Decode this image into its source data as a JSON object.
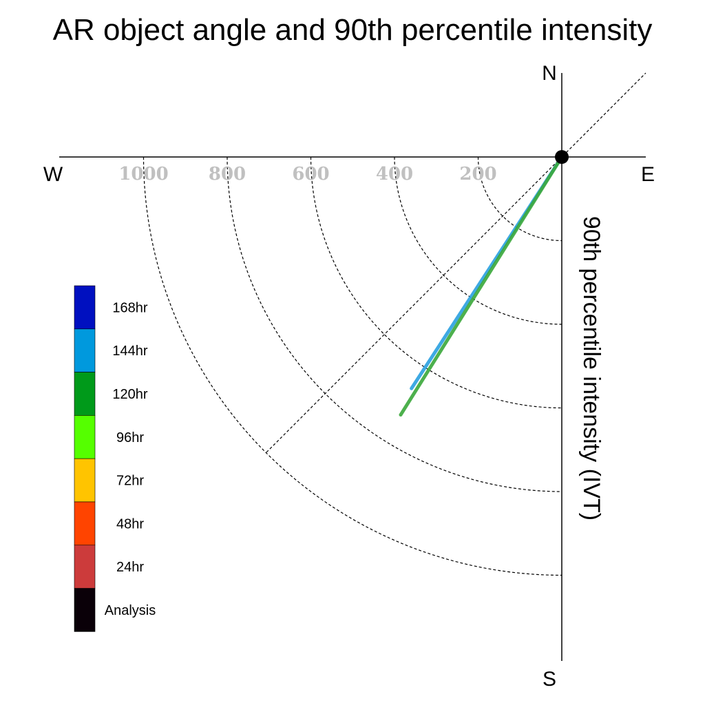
{
  "chart_data": {
    "type": "polar-line",
    "title": "AR object angle and 90th percentile intensity",
    "ylabel": "90th percentile intensity (IVT)",
    "compass": {
      "north": "N",
      "south": "S",
      "east": "E",
      "west": "W"
    },
    "radial_ticks": [
      200,
      400,
      600,
      800,
      1000
    ],
    "tick_labels": [
      "200",
      "400",
      "600",
      "800",
      "1000"
    ],
    "reference_diagonal_deg": 45,
    "legend": [
      {
        "label": "168hr",
        "color": "#0010c0"
      },
      {
        "label": "144hr",
        "color": "#0099dd"
      },
      {
        "label": "120hr",
        "color": "#009a1a"
      },
      {
        "label": "96hr",
        "color": "#55ff00"
      },
      {
        "label": "72hr",
        "color": "#ffc400"
      },
      {
        "label": "48hr",
        "color": "#ff4400"
      },
      {
        "label": "24hr",
        "color": "#cc3b3b"
      },
      {
        "label": "Analysis",
        "color": "#0a0008"
      }
    ],
    "series": [
      {
        "name": "144hr",
        "color": "#2aa0e0",
        "angle_deg": 213,
        "intensity": 660
      },
      {
        "name": "120hr",
        "color": "#3aa83a",
        "angle_deg": 212,
        "intensity": 727
      }
    ],
    "origin_color": "#000000"
  }
}
